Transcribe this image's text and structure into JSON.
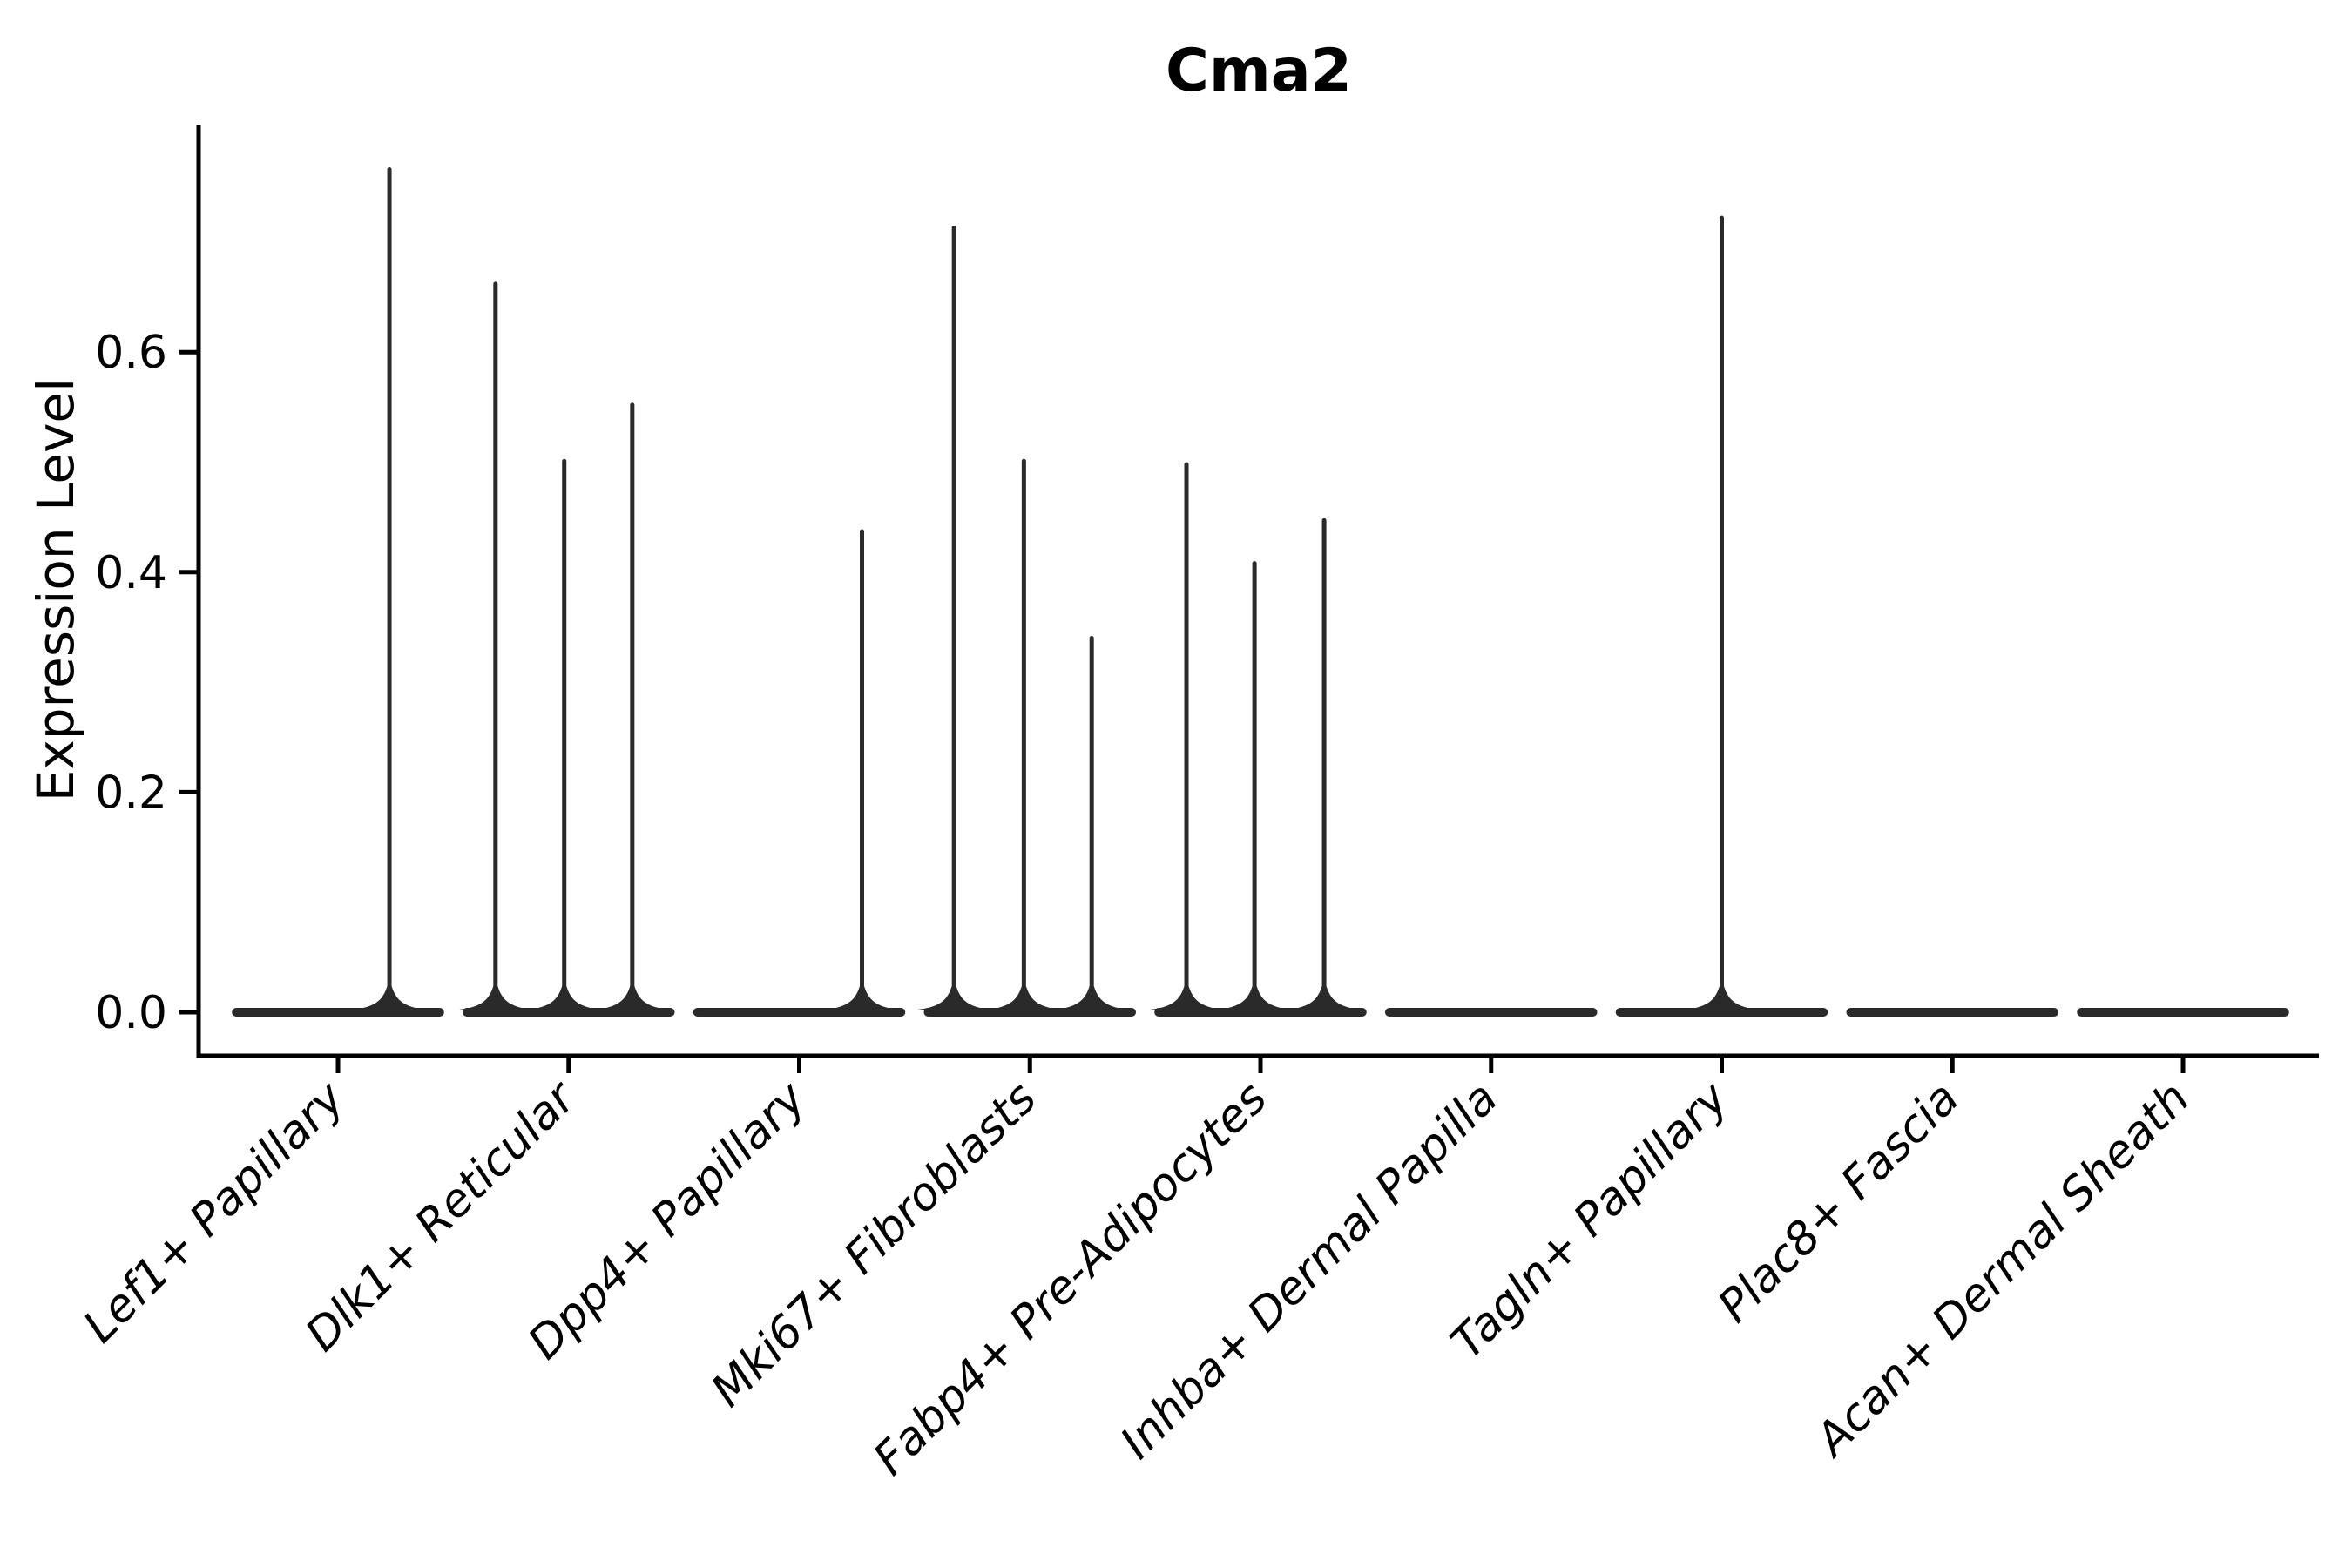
{
  "chart_data": {
    "type": "violin",
    "title": "Cma2",
    "xlabel": "",
    "ylabel": "Expression Level",
    "categories": [
      "Lef1+ Papillary",
      "Dlk1+ Reticular",
      "Dpp4+ Papillary",
      "Mki67+ Fibroblasts",
      "Fabp4+ Pre-Adipocytes",
      "Inhba+ Dermal Papilla",
      "Tagln+ Papillary",
      "Plac8+ Fascia",
      "Acan+ Dermal Sheath"
    ],
    "ytick_values": [
      0.0,
      0.2,
      0.4,
      0.6
    ],
    "ytick_labels": [
      "0.0",
      "0.2",
      "0.4",
      "0.6"
    ],
    "ylim": [
      -0.038,
      0.807
    ],
    "grid": false,
    "legend": "none",
    "xtick_rotation_deg": 45,
    "xtick_style": "italic",
    "spines": [
      "left",
      "bottom"
    ],
    "colors": {
      "violin": "#2a2a2a",
      "axis": "#000000",
      "background": "#ffffff"
    },
    "violins": [
      {
        "category": "Lef1+ Papillary",
        "base_value": 0.0,
        "base_halfwidth_frac": 0.46,
        "spikes": [
          {
            "offset_frac": 0.223,
            "value": 0.768
          }
        ]
      },
      {
        "category": "Dlk1+ Reticular",
        "base_value": 0.0,
        "base_halfwidth_frac": 0.46,
        "spikes": [
          {
            "offset_frac": -0.317,
            "value": 0.664
          },
          {
            "offset_frac": -0.019,
            "value": 0.503
          },
          {
            "offset_frac": 0.276,
            "value": 0.554
          }
        ]
      },
      {
        "category": "Dpp4+ Papillary",
        "base_value": 0.0,
        "base_halfwidth_frac": 0.46,
        "spikes": [
          {
            "offset_frac": 0.272,
            "value": 0.439
          }
        ]
      },
      {
        "category": "Mki67+ Fibroblasts",
        "base_value": 0.0,
        "base_halfwidth_frac": 0.46,
        "spikes": [
          {
            "offset_frac": -0.329,
            "value": 0.715
          },
          {
            "offset_frac": -0.026,
            "value": 0.503
          },
          {
            "offset_frac": 0.268,
            "value": 0.342
          }
        ]
      },
      {
        "category": "Fabp4+ Pre-Adipocytes",
        "base_value": 0.0,
        "base_halfwidth_frac": 0.46,
        "spikes": [
          {
            "offset_frac": -0.321,
            "value": 0.5
          },
          {
            "offset_frac": -0.026,
            "value": 0.41
          },
          {
            "offset_frac": 0.276,
            "value": 0.449
          }
        ]
      },
      {
        "category": "Inhba+ Dermal Papilla",
        "base_value": 0.0,
        "base_halfwidth_frac": 0.46,
        "spikes": []
      },
      {
        "category": "Tagln+ Papillary",
        "base_value": 0.0,
        "base_halfwidth_frac": 0.46,
        "spikes": [
          {
            "offset_frac": 0.0,
            "value": 0.724
          }
        ]
      },
      {
        "category": "Plac8+ Fascia",
        "base_value": 0.0,
        "base_halfwidth_frac": 0.46,
        "spikes": []
      },
      {
        "category": "Acan+ Dermal Sheath",
        "base_value": 0.0,
        "base_halfwidth_frac": 0.46,
        "spikes": []
      }
    ]
  }
}
